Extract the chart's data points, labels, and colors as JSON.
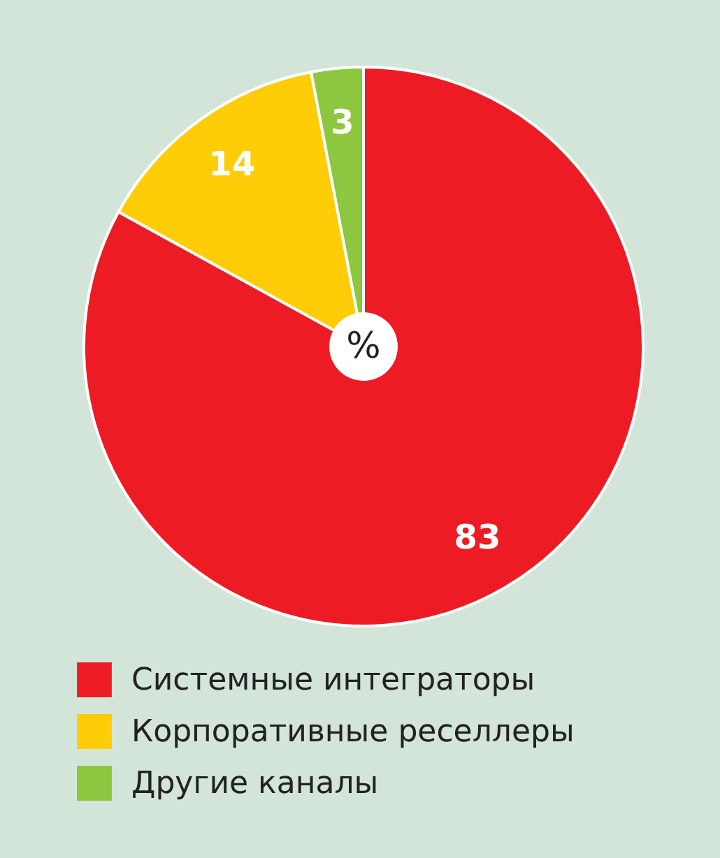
{
  "chart_data": {
    "type": "pie",
    "categories": [
      "Системные интеграторы",
      "Корпоративные реселлеры",
      "Другие каналы"
    ],
    "values": [
      83,
      14,
      3
    ],
    "colors": [
      "#ed1c24",
      "#ffcc08",
      "#8dc63f"
    ],
    "data_labels": true,
    "legend": "bottom",
    "annotations": [
      "%"
    ]
  }
}
